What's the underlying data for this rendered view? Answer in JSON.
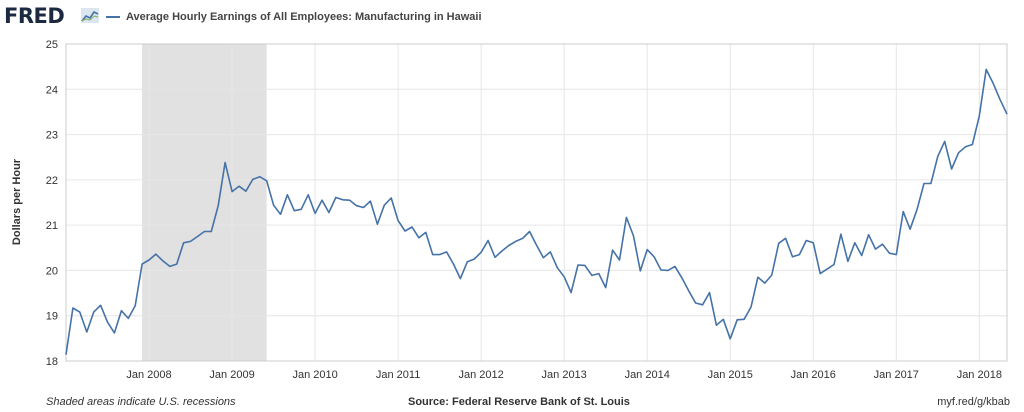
{
  "header": {
    "logo": "FRED",
    "series_label": "Average Hourly Earnings of All Employees: Manufacturing in Hawaii"
  },
  "footer": {
    "recession_note": "Shaded areas indicate U.S. recessions",
    "source": "Source: Federal Reserve Bank of St. Louis",
    "url": "myf.red/g/kbab"
  },
  "colors": {
    "line": "#4572a7",
    "recession": "#e1e1e1",
    "grid": "#e6e6e6"
  },
  "chart_data": {
    "type": "line",
    "title": "",
    "ylabel": "Dollars per Hour",
    "xlabel": "",
    "ylim": [
      18,
      25
    ],
    "yticks": [
      18,
      19,
      20,
      21,
      22,
      23,
      24,
      25
    ],
    "xticks": [
      "Jan 2008",
      "Jan 2009",
      "Jan 2010",
      "Jan 2011",
      "Jan 2012",
      "Jan 2013",
      "Jan 2014",
      "Jan 2015",
      "Jan 2016",
      "Jan 2017",
      "Jan 2018"
    ],
    "grid": true,
    "recessions": [
      {
        "start": "2007-12",
        "end": "2009-06"
      }
    ],
    "series": [
      {
        "name": "Average Hourly Earnings of All Employees: Manufacturing in Hawaii",
        "start": "2007-01",
        "frequency": "monthly",
        "values": [
          18.14,
          19.17,
          19.08,
          18.64,
          19.08,
          19.23,
          18.86,
          18.62,
          19.11,
          18.94,
          19.22,
          20.14,
          20.23,
          20.36,
          20.21,
          20.09,
          20.14,
          20.61,
          20.64,
          20.75,
          20.86,
          20.86,
          21.43,
          22.38,
          21.74,
          21.86,
          21.75,
          22.01,
          22.07,
          21.98,
          21.44,
          21.24,
          21.67,
          21.32,
          21.35,
          21.67,
          21.26,
          21.55,
          21.28,
          21.61,
          21.56,
          21.55,
          21.43,
          21.39,
          21.53,
          21.02,
          21.44,
          21.6,
          21.1,
          20.87,
          20.96,
          20.72,
          20.84,
          20.35,
          20.35,
          20.41,
          20.14,
          19.82,
          20.19,
          20.25,
          20.4,
          20.66,
          20.29,
          20.43,
          20.55,
          20.64,
          20.71,
          20.86,
          20.56,
          20.28,
          20.41,
          20.06,
          19.86,
          19.51,
          20.12,
          20.11,
          19.89,
          19.93,
          19.62,
          20.45,
          20.23,
          21.17,
          20.77,
          19.99,
          20.46,
          20.3,
          20.01,
          20.0,
          20.09,
          19.84,
          19.55,
          19.28,
          19.24,
          19.51,
          18.79,
          18.92,
          18.49,
          18.91,
          18.92,
          19.19,
          19.85,
          19.72,
          19.9,
          20.6,
          20.71,
          20.3,
          20.35,
          20.66,
          20.61,
          19.93,
          20.03,
          20.13,
          20.8,
          20.2,
          20.61,
          20.33,
          20.79,
          20.47,
          20.58,
          20.38,
          20.35,
          21.3,
          20.91,
          21.35,
          21.92,
          21.92,
          22.52,
          22.85,
          22.24,
          22.6,
          22.73,
          22.78,
          23.41,
          24.44,
          24.13,
          23.77,
          23.45
        ]
      }
    ]
  }
}
